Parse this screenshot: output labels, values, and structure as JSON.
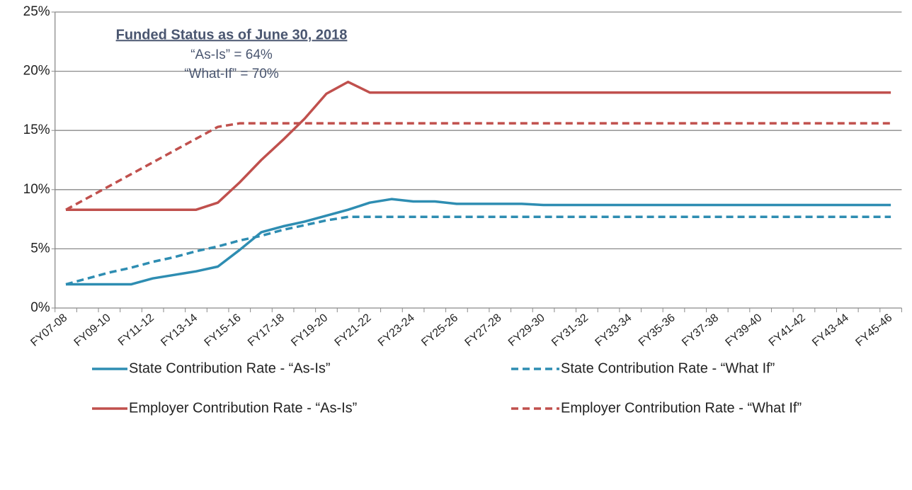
{
  "chart_data": {
    "type": "line",
    "categories": [
      "FY07-08",
      null,
      "FY09-10",
      null,
      "FY11-12",
      null,
      "FY13-14",
      null,
      "FY15-16",
      null,
      "FY17-18",
      null,
      "FY19-20",
      null,
      "FY21-22",
      null,
      "FY23-24",
      null,
      "FY25-26",
      null,
      "FY27-28",
      null,
      "FY29-30",
      null,
      "FY31-32",
      null,
      "FY33-34",
      null,
      "FY35-36",
      null,
      "FY37-38",
      null,
      "FY39-40",
      null,
      "FY41-42",
      null,
      "FY43-44",
      null,
      "FY45-46"
    ],
    "series": [
      {
        "name": "State Contribution Rate - “As-Is”",
        "color": "#2e8db2",
        "dashed": false,
        "values": [
          2.0,
          2.0,
          2.0,
          2.0,
          2.5,
          2.8,
          3.1,
          3.5,
          4.9,
          6.4,
          6.9,
          7.3,
          7.8,
          8.3,
          8.9,
          9.2,
          9.0,
          9.0,
          8.8,
          8.8,
          8.8,
          8.8,
          8.7,
          8.7,
          8.7,
          8.7,
          8.7,
          8.7,
          8.7,
          8.7,
          8.7,
          8.7,
          8.7,
          8.7,
          8.7,
          8.7,
          8.7,
          8.7,
          8.7
        ]
      },
      {
        "name": "State Contribution Rate - “What If”",
        "color": "#2e8db2",
        "dashed": true,
        "values": [
          2.0,
          2.5,
          3.0,
          3.4,
          3.9,
          4.3,
          4.8,
          5.2,
          5.7,
          6.1,
          6.6,
          7.0,
          7.4,
          7.7,
          7.7,
          7.7,
          7.7,
          7.7,
          7.7,
          7.7,
          7.7,
          7.7,
          7.7,
          7.7,
          7.7,
          7.7,
          7.7,
          7.7,
          7.7,
          7.7,
          7.7,
          7.7,
          7.7,
          7.7,
          7.7,
          7.7,
          7.7,
          7.7,
          7.7
        ]
      },
      {
        "name": "Employer Contribution Rate - “As-Is”",
        "color": "#c0504d",
        "dashed": false,
        "values": [
          8.3,
          8.3,
          8.3,
          8.3,
          8.3,
          8.3,
          8.3,
          8.9,
          10.6,
          12.5,
          14.2,
          16.0,
          18.1,
          19.1,
          18.2,
          18.2,
          18.2,
          18.2,
          18.2,
          18.2,
          18.2,
          18.2,
          18.2,
          18.2,
          18.2,
          18.2,
          18.2,
          18.2,
          18.2,
          18.2,
          18.2,
          18.2,
          18.2,
          18.2,
          18.2,
          18.2,
          18.2,
          18.2,
          18.2
        ]
      },
      {
        "name": "Employer Contribution Rate - “What If”",
        "color": "#c0504d",
        "dashed": true,
        "values": [
          8.3,
          9.3,
          10.3,
          11.3,
          12.3,
          13.3,
          14.3,
          15.3,
          15.6,
          15.6,
          15.6,
          15.6,
          15.6,
          15.6,
          15.6,
          15.6,
          15.6,
          15.6,
          15.6,
          15.6,
          15.6,
          15.6,
          15.6,
          15.6,
          15.6,
          15.6,
          15.6,
          15.6,
          15.6,
          15.6,
          15.6,
          15.6,
          15.6,
          15.6,
          15.6,
          15.6,
          15.6,
          15.6,
          15.6
        ]
      }
    ],
    "ylim": [
      0,
      25
    ],
    "yticks": [
      {
        "value": 0,
        "label": "0%"
      },
      {
        "value": 5,
        "label": "5%"
      },
      {
        "value": 10,
        "label": "10%"
      },
      {
        "value": 15,
        "label": "15%"
      },
      {
        "value": 20,
        "label": "20%"
      },
      {
        "value": 25,
        "label": "25%"
      }
    ],
    "grid": true,
    "annotations": [
      "Funded Status as of June 30, 2018",
      "“As-Is” = 64%",
      "“What-If” = 70%"
    ]
  }
}
